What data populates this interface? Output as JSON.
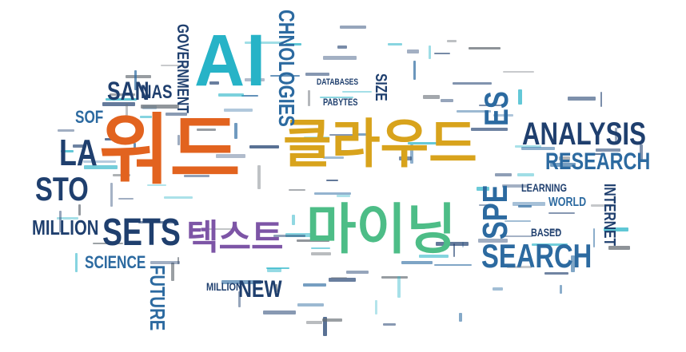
{
  "cloud": {
    "ai": "AI",
    "word": "워드",
    "cloud": "클라우드",
    "text": "텍스트",
    "mining": "마이닝",
    "analysis": "ANALYSIS",
    "research": "RESEARCH",
    "search": "SEARCH",
    "sets": "SETS",
    "million": "MILLION",
    "la": "LA",
    "sto": "STO",
    "science": "SCIENCE",
    "new": "NEW",
    "future": "FUTURE",
    "government": "GOVERNMENT",
    "technologies": "CHNOLOGIES",
    "es": "ES",
    "spe": "SPE",
    "san": "SAN",
    "nas": "NAS",
    "sof": "SOF",
    "internet": "INTERNET",
    "learning": "LEARNING",
    "world": "WORLD",
    "based": "BASED",
    "databases": "DATABASES",
    "size": "SIZE",
    "million2": "MILLION",
    "petabytes": "PABYTES"
  }
}
